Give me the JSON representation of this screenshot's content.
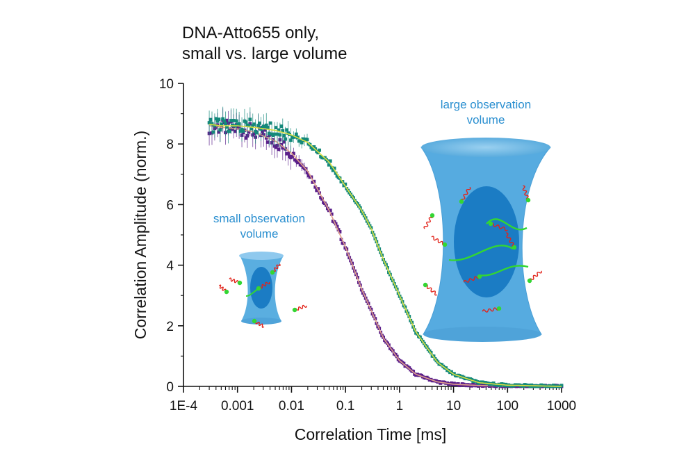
{
  "chart_data": {
    "type": "scatter",
    "title": "DNA-Atto655 only,",
    "subtitle": "small vs. large volume",
    "xlabel": "Correlation Time [ms]",
    "ylabel": "Correlation Amplitude (norm.)",
    "xscale": "log",
    "xlim": [
      0.0001,
      1000
    ],
    "ylim": [
      0,
      10
    ],
    "xticks": [
      0.0001,
      0.001,
      0.01,
      0.1,
      1,
      10,
      100,
      1000
    ],
    "xtick_labels": [
      "1E-4",
      "0.001",
      "0.01",
      "0.1",
      "1",
      "10",
      "100",
      "1000"
    ],
    "yticks": [
      0,
      2,
      4,
      6,
      8,
      10
    ],
    "ytick_labels": [
      "0",
      "2",
      "4",
      "6",
      "8",
      "10"
    ],
    "series": [
      {
        "name": "small observation volume",
        "marker_color": "#5b1f8a",
        "fit_color": "#e0a08a",
        "x": [
          0.0003,
          0.0005,
          0.001,
          0.002,
          0.005,
          0.01,
          0.02,
          0.05,
          0.1,
          0.2,
          0.3,
          0.5,
          1,
          2,
          5,
          10,
          30,
          100,
          1000
        ],
        "y": [
          8.6,
          8.55,
          8.5,
          8.4,
          8.1,
          7.7,
          7.1,
          5.8,
          4.6,
          3.2,
          2.5,
          1.6,
          0.85,
          0.4,
          0.15,
          0.07,
          0.03,
          0.01,
          0.0
        ]
      },
      {
        "name": "large observation volume",
        "marker_color": "#14897a",
        "fit_color": "#d8e040",
        "x": [
          0.0003,
          0.0005,
          0.001,
          0.002,
          0.005,
          0.01,
          0.02,
          0.05,
          0.1,
          0.2,
          0.3,
          0.5,
          1,
          2,
          5,
          10,
          30,
          100,
          1000
        ],
        "y": [
          8.65,
          8.6,
          8.6,
          8.55,
          8.45,
          8.3,
          8.05,
          7.4,
          6.6,
          5.8,
          5.2,
          4.2,
          3.0,
          1.8,
          0.8,
          0.4,
          0.12,
          0.04,
          0.0
        ]
      }
    ],
    "annotations": {
      "small_volume": [
        "small observation",
        "volume"
      ],
      "large_volume": [
        "large observation",
        "volume"
      ]
    }
  },
  "colors": {
    "volume_fill": "#5aaee0",
    "volume_core": "#1e7fc4",
    "text_blue": "#2a8fd0",
    "dna_red": "#e2231a",
    "dye_green": "#33d633"
  }
}
